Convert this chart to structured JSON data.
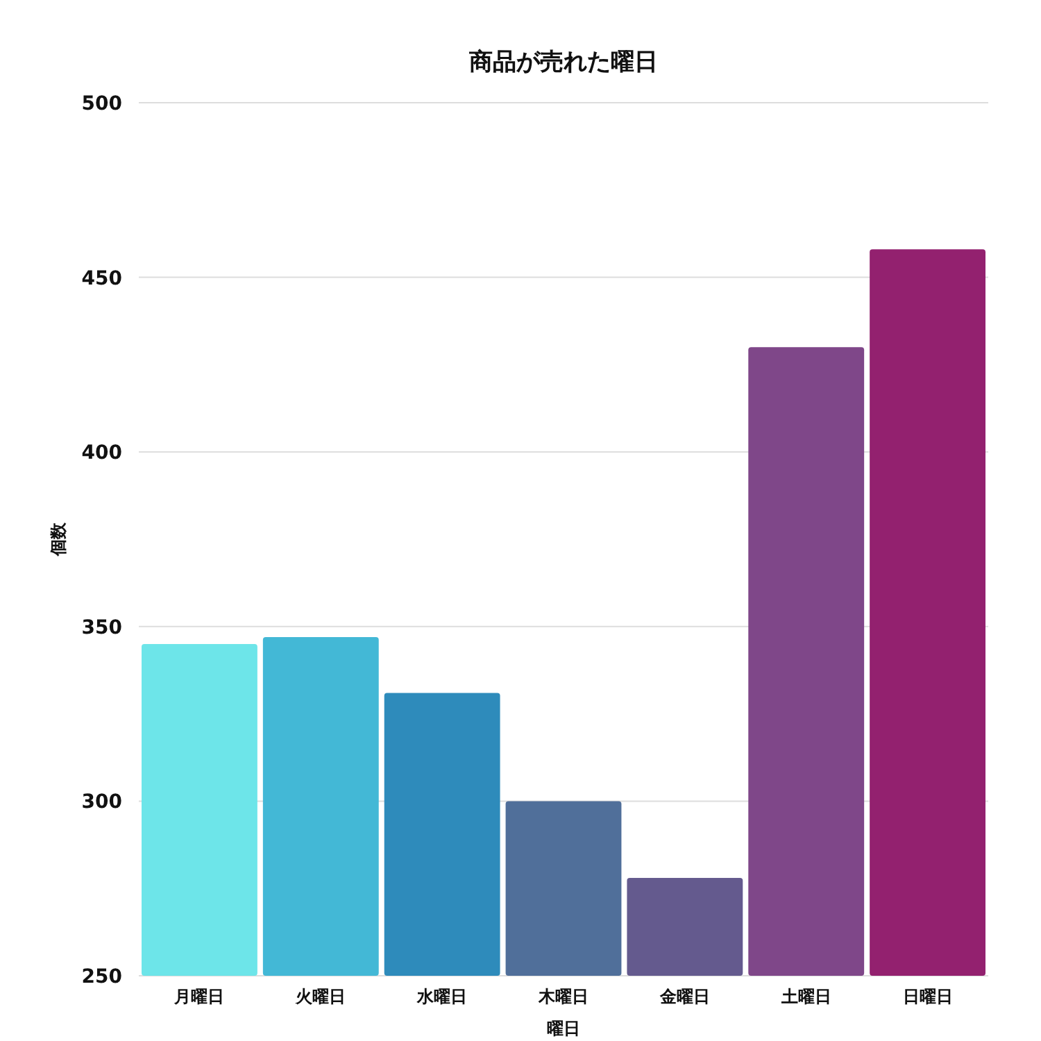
{
  "chart_data": {
    "type": "bar",
    "title": "商品が売れた曜日",
    "xlabel": "曜日",
    "ylabel": "個数",
    "categories": [
      "月曜日",
      "火曜日",
      "水曜日",
      "木曜日",
      "金曜日",
      "土曜日",
      "日曜日"
    ],
    "values": [
      345,
      347,
      331,
      300,
      278,
      430,
      458
    ],
    "colors": [
      "#6de5e9",
      "#43b8d6",
      "#2e8bbb",
      "#506f9a",
      "#645a8e",
      "#7f4789",
      "#93216f"
    ],
    "ylim": [
      250,
      500
    ],
    "yticks": [
      250,
      300,
      350,
      400,
      450,
      500
    ],
    "grid": "y"
  }
}
